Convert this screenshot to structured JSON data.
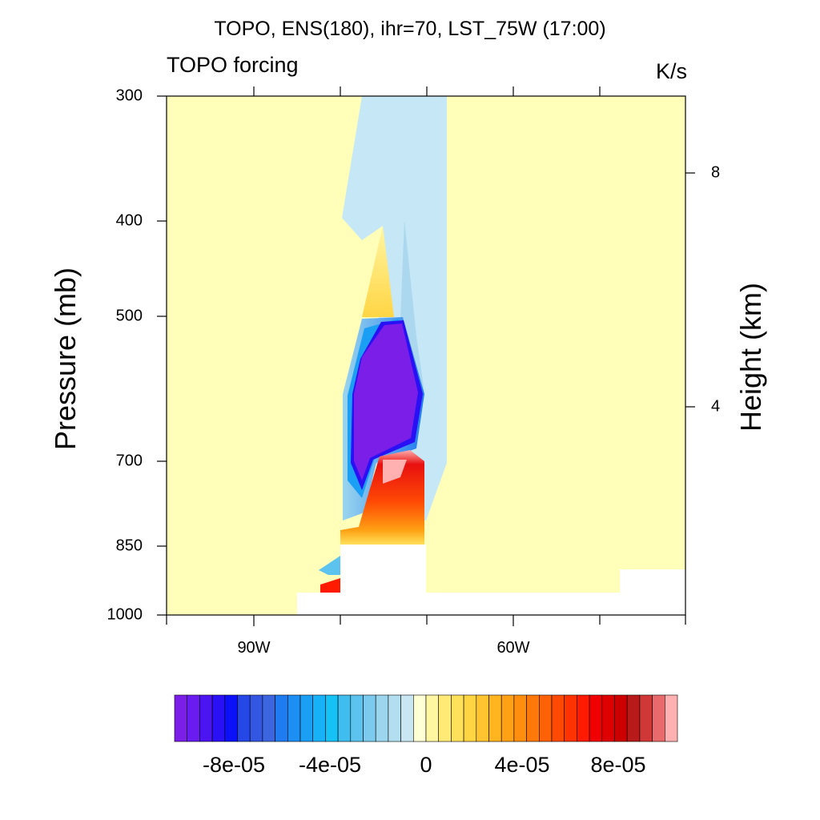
{
  "chart_data": {
    "type": "heatmap",
    "title": "TOPO, ENS(180), ihr=70, LST_75W (17:00)",
    "left_string": "TOPO forcing",
    "right_string": "K/s",
    "ylabel": "Pressure (mb)",
    "ylabel_right": "Height (km)",
    "y_ticks": [
      "300",
      "400",
      "500",
      "700",
      "850",
      "1000"
    ],
    "y_right_ticks": [
      "8",
      "4"
    ],
    "x_ticks": [
      "90W",
      "60W"
    ],
    "colorbar_labels": [
      "-8e-05",
      "-4e-05",
      "0",
      "4e-05",
      "8e-05"
    ],
    "colorbar_colors": [
      "#7B1FE8",
      "#6A1CF0",
      "#4D14F2",
      "#2A10F5",
      "#0C10F8",
      "#2447E6",
      "#3356E3",
      "#3C66E0",
      "#1F7BF0",
      "#1E8FF2",
      "#1B9FF5",
      "#17B1F8",
      "#16C1F5",
      "#3EBDEE",
      "#5CC2EE",
      "#7CCBEE",
      "#9BD5EE",
      "#B3DEEF",
      "#C8E7F3",
      "#FFFFD5",
      "#FFF6A2",
      "#FFEA76",
      "#FFE05A",
      "#FFD544",
      "#FFC42F",
      "#FFB420",
      "#FFA114",
      "#FF8E0E",
      "#FF790A",
      "#FF6106",
      "#FF4A04",
      "#FF3300",
      "#FF1A00",
      "#F00000",
      "#DE0000",
      "#CC0000",
      "#B81A1A",
      "#D03838",
      "#E86A6A",
      "#FFB0B0"
    ],
    "field": {
      "background": "#FFFFBA",
      "weak_negative": "#C6E7F5",
      "strong_negative": "#7B1FE8",
      "strong_positive": "#E81010"
    }
  }
}
